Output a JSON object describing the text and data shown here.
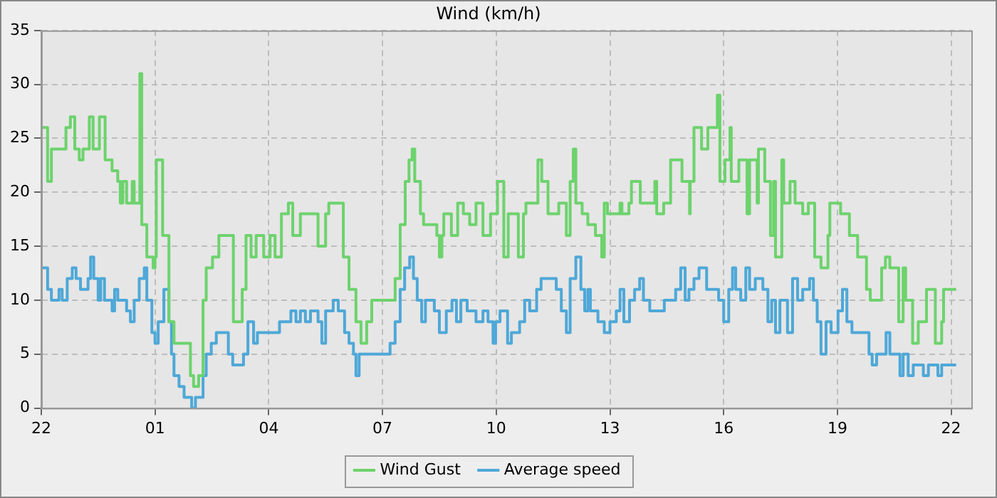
{
  "chart_data": {
    "type": "step",
    "title": "Wind (km/h)",
    "xlim": [
      "--01-01T22:00",
      "--01-02T22:32"
    ],
    "xticks": [
      {
        "value": "--01-01T22:00",
        "label": "22"
      },
      {
        "value": "--01-02T01:00",
        "label": "01"
      },
      {
        "value": "--01-02T04:00",
        "label": "04"
      },
      {
        "value": "--01-02T07:00",
        "label": "07"
      },
      {
        "value": "--01-02T10:00",
        "label": "10"
      },
      {
        "value": "--01-02T13:00",
        "label": "13"
      },
      {
        "value": "--01-02T16:00",
        "label": "16"
      },
      {
        "value": "--01-02T19:00",
        "label": "19"
      },
      {
        "value": "--01-02T22:00",
        "label": "22"
      }
    ],
    "ylim": [
      0,
      35
    ],
    "yticks": [
      0,
      5,
      10,
      15,
      20,
      25,
      30,
      35
    ],
    "grid": true,
    "legend": "bottom",
    "line_style": "solid",
    "marker": "none",
    "series": [
      {
        "name": "Wind Gust",
        "color": "#6dd36d",
        "x": [
          "--01-01T22:00",
          "--01-01T22:10",
          "--01-01T22:16",
          "--01-01T22:39",
          "--01-01T22:46",
          "--01-01T22:53",
          "--01-01T23:00",
          "--01-01T23:06",
          "--01-01T23:16",
          "--01-01T23:22",
          "--01-01T23:32",
          "--01-01T23:41",
          "--01-01T23:52",
          "--01-02T00:01",
          "--01-02T00:05",
          "--01-02T00:09",
          "--01-02T00:15",
          "--01-02T00:24",
          "--01-02T00:27",
          "--01-02T00:36",
          "--01-02T00:39",
          "--01-02T00:47",
          "--01-02T00:57",
          "--01-02T01:00",
          "--01-02T01:02",
          "--01-02T01:12",
          "--01-02T01:22",
          "--01-02T01:30",
          "--01-02T01:36",
          "--01-02T01:56",
          "--01-02T02:01",
          "--01-02T02:09",
          "--01-02T02:16",
          "--01-02T02:21",
          "--01-02T02:31",
          "--01-02T02:41",
          "--01-02T02:52",
          "--01-02T03:04",
          "--01-02T03:18",
          "--01-02T03:24",
          "--01-02T03:32",
          "--01-02T03:40",
          "--01-02T03:52",
          "--01-02T04:02",
          "--01-02T04:10",
          "--01-02T04:20",
          "--01-02T04:31",
          "--01-02T04:38",
          "--01-02T04:50",
          "--01-02T05:18",
          "--01-02T05:30",
          "--01-02T05:35",
          "--01-02T05:58",
          "--01-02T06:07",
          "--01-02T06:18",
          "--01-02T06:26",
          "--01-02T06:35",
          "--01-02T06:43",
          "--01-02T07:20",
          "--01-02T07:28",
          "--01-02T07:36",
          "--01-02T07:42",
          "--01-02T07:47",
          "--01-02T07:51",
          "--01-02T08:00",
          "--01-02T08:05",
          "--01-02T08:26",
          "--01-02T08:30",
          "--01-02T08:34",
          "--01-02T08:37",
          "--01-02T08:49",
          "--01-02T08:59",
          "--01-02T09:08",
          "--01-02T09:18",
          "--01-02T09:28",
          "--01-02T09:39",
          "--01-02T09:51",
          "--01-02T10:02",
          "--01-02T10:12",
          "--01-02T10:19",
          "--01-02T10:35",
          "--01-02T10:43",
          "--01-02T10:47",
          "--01-02T11:06",
          "--01-02T11:12",
          "--01-02T11:22",
          "--01-02T11:39",
          "--01-02T11:51",
          "--01-02T11:57",
          "--01-02T12:02",
          "--01-02T12:06",
          "--01-02T12:16",
          "--01-02T12:25",
          "--01-02T12:37",
          "--01-02T12:47",
          "--01-02T12:51",
          "--01-02T12:56",
          "--01-02T13:16",
          "--01-02T13:19",
          "--01-02T13:30",
          "--01-02T13:34",
          "--01-02T13:48",
          "--01-02T14:11",
          "--01-02T14:14",
          "--01-02T14:25",
          "--01-02T14:36",
          "--01-02T14:54",
          "--01-02T15:06",
          "--01-02T15:07",
          "--01-02T15:13",
          "--01-02T15:25",
          "--01-02T15:35",
          "--01-02T15:50",
          "--01-02T15:54",
          "--01-02T16:02",
          "--01-02T16:10",
          "--01-02T16:12",
          "--01-02T16:24",
          "--01-02T16:37",
          "--01-02T16:41",
          "--01-02T16:53",
          "--01-02T16:55",
          "--01-02T17:05",
          "--01-02T17:14",
          "--01-02T17:19",
          "--01-02T17:22",
          "--01-02T17:32",
          "--01-02T17:35",
          "--01-02T17:45",
          "--01-02T17:53",
          "--01-02T18:05",
          "--01-02T18:14",
          "--01-02T18:24",
          "--01-02T18:34",
          "--01-02T18:45",
          "--01-02T18:48",
          "--01-02T19:05",
          "--01-02T19:19",
          "--01-02T19:32",
          "--01-02T19:46",
          "--01-02T19:52",
          "--01-02T20:10",
          "--01-02T20:16",
          "--01-02T20:23",
          "--01-02T20:37",
          "--01-02T20:44",
          "--01-02T20:48",
          "--01-02T20:59",
          "--01-02T21:08",
          "--01-02T21:21",
          "--01-02T21:35",
          "--01-02T21:45",
          "--01-02T21:48",
          "--01-02T21:58",
          "--01-02T22:08"
        ],
        "values": [
          26,
          26,
          21,
          24,
          26,
          27,
          24,
          23,
          24,
          27,
          24,
          27,
          23,
          22,
          21,
          19,
          21,
          19,
          21,
          19,
          31,
          17,
          14,
          13,
          14,
          23,
          16,
          8,
          6,
          6,
          3,
          2,
          3,
          10,
          13,
          14,
          16,
          16,
          8,
          11,
          16,
          14,
          16,
          14,
          16,
          14,
          18,
          19,
          16,
          18,
          15,
          18,
          19,
          14,
          11,
          8,
          6,
          8,
          10,
          12,
          17,
          21,
          23,
          24,
          21,
          18,
          17,
          16,
          14,
          16,
          18,
          16,
          19,
          18,
          17,
          19,
          16,
          18,
          21,
          14,
          18,
          14,
          18,
          19,
          23,
          21,
          18,
          19,
          16,
          21,
          24,
          19,
          18,
          17,
          16,
          14,
          19,
          18,
          19,
          18,
          19,
          21,
          19,
          21,
          18,
          19,
          23,
          21,
          18,
          21,
          26,
          24,
          26,
          29,
          21,
          23,
          26,
          21,
          23,
          18,
          23,
          19,
          24,
          21,
          16,
          21,
          14,
          23,
          19,
          21,
          19,
          18,
          19,
          14,
          13,
          16,
          19,
          18,
          16,
          14,
          11,
          10,
          13,
          14,
          13,
          8,
          13,
          10,
          6,
          8,
          11,
          6,
          8,
          11,
          11
        ]
      },
      {
        "name": "Average speed",
        "color": "#4ea8d8",
        "x": [
          "--01-01T22:00",
          "--01-01T22:10",
          "--01-01T22:16",
          "--01-01T22:28",
          "--01-01T22:33",
          "--01-01T22:41",
          "--01-01T22:49",
          "--01-01T22:55",
          "--01-01T23:02",
          "--01-01T23:14",
          "--01-01T23:18",
          "--01-01T23:23",
          "--01-01T23:30",
          "--01-01T23:34",
          "--01-01T23:40",
          "--01-01T23:52",
          "--01-01T23:56",
          "--01-02T00:01",
          "--01-02T00:15",
          "--01-02T00:21",
          "--01-02T00:27",
          "--01-02T00:35",
          "--01-02T00:43",
          "--01-02T00:47",
          "--01-02T00:55",
          "--01-02T01:00",
          "--01-02T01:05",
          "--01-02T01:14",
          "--01-02T01:22",
          "--01-02T01:26",
          "--01-02T01:30",
          "--01-02T01:38",
          "--01-02T01:46",
          "--01-02T01:58",
          "--01-02T02:04",
          "--01-02T02:16",
          "--01-02T02:21",
          "--01-02T02:29",
          "--01-02T02:37",
          "--01-02T02:56",
          "--01-02T03:03",
          "--01-02T03:20",
          "--01-02T03:27",
          "--01-02T03:36",
          "--01-02T03:42",
          "--01-02T03:52",
          "--01-02T04:17",
          "--01-02T04:35",
          "--01-02T04:43",
          "--01-02T04:50",
          "--01-02T04:58",
          "--01-02T05:06",
          "--01-02T05:18",
          "--01-02T05:24",
          "--01-02T05:30",
          "--01-02T05:42",
          "--01-02T05:50",
          "--01-02T06:00",
          "--01-02T06:07",
          "--01-02T06:14",
          "--01-02T06:18",
          "--01-02T06:23",
          "--01-02T07:05",
          "--01-02T07:12",
          "--01-02T07:20",
          "--01-02T07:28",
          "--01-02T07:35",
          "--01-02T07:43",
          "--01-02T07:49",
          "--01-02T07:55",
          "--01-02T08:02",
          "--01-02T08:08",
          "--01-02T08:22",
          "--01-02T08:30",
          "--01-02T08:41",
          "--01-02T08:50",
          "--01-02T08:57",
          "--01-02T09:04",
          "--01-02T09:14",
          "--01-02T09:28",
          "--01-02T09:39",
          "--01-02T09:47",
          "--01-02T09:55",
          "--01-02T09:59",
          "--01-02T10:06",
          "--01-02T10:18",
          "--01-02T10:24",
          "--01-02T10:37",
          "--01-02T10:45",
          "--01-02T10:53",
          "--01-02T11:04",
          "--01-02T11:11",
          "--01-02T11:35",
          "--01-02T11:43",
          "--01-02T11:51",
          "--01-02T11:57",
          "--01-02T12:06",
          "--01-02T12:14",
          "--01-02T12:20",
          "--01-02T12:25",
          "--01-02T12:29",
          "--01-02T12:41",
          "--01-02T12:51",
          "--01-02T13:00",
          "--01-02T13:10",
          "--01-02T13:16",
          "--01-02T13:22",
          "--01-02T13:31",
          "--01-02T13:39",
          "--01-02T13:47",
          "--01-02T13:53",
          "--01-02T14:03",
          "--01-02T14:26",
          "--01-02T14:44",
          "--01-02T14:52",
          "--01-02T14:59",
          "--01-02T15:05",
          "--01-02T15:13",
          "--01-02T15:21",
          "--01-02T15:33",
          "--01-02T15:52",
          "--01-02T16:00",
          "--01-02T16:08",
          "--01-02T16:14",
          "--01-02T16:19",
          "--01-02T16:27",
          "--01-02T16:35",
          "--01-02T16:41",
          "--01-02T16:50",
          "--01-02T17:02",
          "--01-02T17:10",
          "--01-02T17:16",
          "--01-02T17:22",
          "--01-02T17:29",
          "--01-02T17:41",
          "--01-02T17:49",
          "--01-02T17:57",
          "--01-02T18:05",
          "--01-02T18:16",
          "--01-02T18:22",
          "--01-02T18:28",
          "--01-02T18:34",
          "--01-02T18:42",
          "--01-02T18:50",
          "--01-02T19:01",
          "--01-02T19:08",
          "--01-02T19:15",
          "--01-02T19:23",
          "--01-02T19:29",
          "--01-02T19:50",
          "--01-02T19:55",
          "--01-02T20:02",
          "--01-02T20:17",
          "--01-02T20:23",
          "--01-02T20:39",
          "--01-02T20:44",
          "--01-02T20:52",
          "--01-02T21:00",
          "--01-02T21:16",
          "--01-02T21:24",
          "--01-02T21:39",
          "--01-02T21:45",
          "--01-02T22:02",
          "--01-02T22:08"
        ],
        "values": [
          13,
          13,
          11,
          10,
          11,
          10,
          12,
          13,
          12,
          11,
          12,
          14,
          12,
          10,
          12,
          10,
          9,
          11,
          10,
          9,
          8,
          10,
          12,
          13,
          10,
          7,
          6,
          8,
          11,
          8,
          5,
          3,
          2,
          1,
          0,
          1,
          3,
          5,
          6,
          7,
          5,
          4,
          5,
          8,
          6,
          7,
          7,
          8,
          9,
          8,
          9,
          8,
          9,
          8,
          6,
          9,
          10,
          9,
          7,
          6,
          5,
          3,
          5,
          5,
          6,
          8,
          11,
          13,
          14,
          12,
          10,
          8,
          10,
          9,
          7,
          9,
          10,
          8,
          10,
          9,
          8,
          9,
          8,
          6,
          8,
          9,
          6,
          7,
          8,
          10,
          9,
          11,
          12,
          11,
          9,
          7,
          12,
          14,
          11,
          9,
          11,
          9,
          8,
          7,
          8,
          9,
          11,
          8,
          10,
          11,
          12,
          10,
          9,
          10,
          11,
          13,
          10,
          11,
          12,
          13,
          11,
          10,
          8,
          11,
          13,
          11,
          10,
          13,
          11,
          12,
          11,
          8,
          10,
          7,
          10,
          7,
          12,
          10,
          11,
          12,
          10,
          8,
          5,
          8,
          7,
          9,
          11,
          8,
          7,
          7,
          5,
          4,
          5,
          7,
          5,
          3,
          5,
          3,
          4,
          3,
          4,
          3,
          4,
          4
        ]
      }
    ]
  }
}
